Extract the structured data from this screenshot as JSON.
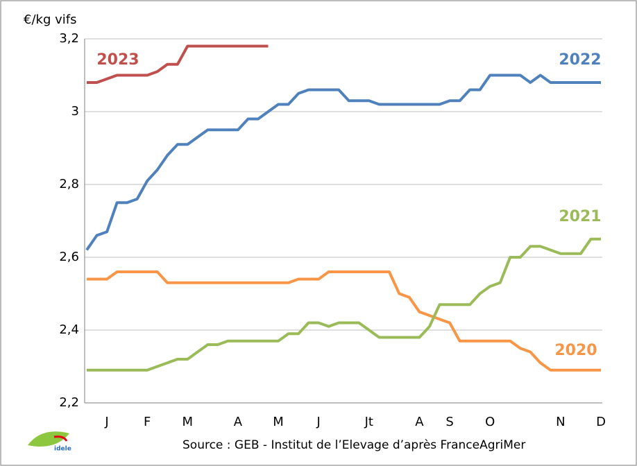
{
  "chart_data": {
    "type": "line",
    "y_label": "€/kg vifs",
    "source": "Source : GEB - Institut de l’Elevage d’après FranceAgriMer",
    "logo": "idele",
    "categories": [
      null,
      null,
      "J",
      null,
      null,
      null,
      "F",
      null,
      null,
      null,
      "M",
      null,
      null,
      null,
      null,
      "A",
      null,
      null,
      null,
      "M",
      null,
      null,
      null,
      "J",
      null,
      null,
      null,
      null,
      "Jt",
      null,
      null,
      null,
      null,
      "A",
      null,
      null,
      "S",
      null,
      null,
      null,
      "O",
      null,
      null,
      null,
      null,
      null,
      null,
      "N",
      null,
      null,
      null,
      "D"
    ],
    "ylim": [
      2.2,
      3.2
    ],
    "yticks": [
      {
        "value": 2.2,
        "label": "2,2"
      },
      {
        "value": 2.4,
        "label": "2,4"
      },
      {
        "value": 2.6,
        "label": "2,6"
      },
      {
        "value": 2.8,
        "label": "2,8"
      },
      3,
      {
        "value": 3.2,
        "label": "3,2"
      }
    ],
    "grid": true,
    "series": [
      {
        "name": "2020",
        "color": "#f79646",
        "values": [
          2.54,
          2.54,
          2.54,
          2.56,
          2.56,
          2.56,
          2.56,
          2.56,
          2.53,
          2.53,
          2.53,
          2.53,
          2.53,
          2.53,
          2.53,
          2.53,
          2.53,
          2.53,
          2.53,
          2.53,
          2.53,
          2.54,
          2.54,
          2.54,
          2.56,
          2.56,
          2.56,
          2.56,
          2.56,
          2.56,
          2.56,
          2.5,
          2.49,
          2.45,
          2.44,
          2.43,
          2.42,
          2.37,
          2.37,
          2.37,
          2.37,
          2.37,
          2.37,
          2.35,
          2.34,
          2.31,
          2.29,
          2.29,
          2.29,
          2.29,
          2.29,
          2.29
        ]
      },
      {
        "name": "2021",
        "color": "#9bbb59",
        "values": [
          2.29,
          2.29,
          2.29,
          2.29,
          2.29,
          2.29,
          2.29,
          2.3,
          2.31,
          2.32,
          2.32,
          2.34,
          2.36,
          2.36,
          2.37,
          2.37,
          2.37,
          2.37,
          2.37,
          2.37,
          2.39,
          2.39,
          2.42,
          2.42,
          2.41,
          2.42,
          2.42,
          2.42,
          2.4,
          2.38,
          2.38,
          2.38,
          2.38,
          2.38,
          2.41,
          2.47,
          2.47,
          2.47,
          2.47,
          2.5,
          2.52,
          2.53,
          2.6,
          2.6,
          2.63,
          2.63,
          2.62,
          2.61,
          2.61,
          2.61,
          2.65,
          2.65
        ]
      },
      {
        "name": "2022",
        "color": "#4f81bd",
        "values": [
          2.62,
          2.66,
          2.67,
          2.75,
          2.75,
          2.76,
          2.81,
          2.84,
          2.88,
          2.91,
          2.91,
          2.93,
          2.95,
          2.95,
          2.95,
          2.95,
          2.98,
          2.98,
          3.0,
          3.02,
          3.02,
          3.05,
          3.06,
          3.06,
          3.06,
          3.06,
          3.03,
          3.03,
          3.03,
          3.02,
          3.02,
          3.02,
          3.02,
          3.02,
          3.02,
          3.02,
          3.03,
          3.03,
          3.06,
          3.06,
          3.1,
          3.1,
          3.1,
          3.1,
          3.08,
          3.1,
          3.08,
          3.08,
          3.08,
          3.08,
          3.08,
          3.08
        ]
      },
      {
        "name": "2023",
        "color": "#c0504d",
        "values": [
          3.08,
          3.08,
          3.09,
          3.1,
          3.1,
          3.1,
          3.1,
          3.11,
          3.13,
          3.13,
          3.18,
          3.18,
          3.18,
          3.18,
          3.18,
          3.18,
          3.18,
          3.18,
          3.18,
          null,
          null,
          null,
          null,
          null,
          null,
          null,
          null,
          null,
          null,
          null,
          null,
          null,
          null,
          null,
          null,
          null,
          null,
          null,
          null,
          null,
          null,
          null,
          null,
          null,
          null,
          null,
          null,
          null,
          null,
          null,
          null,
          null
        ]
      }
    ]
  }
}
